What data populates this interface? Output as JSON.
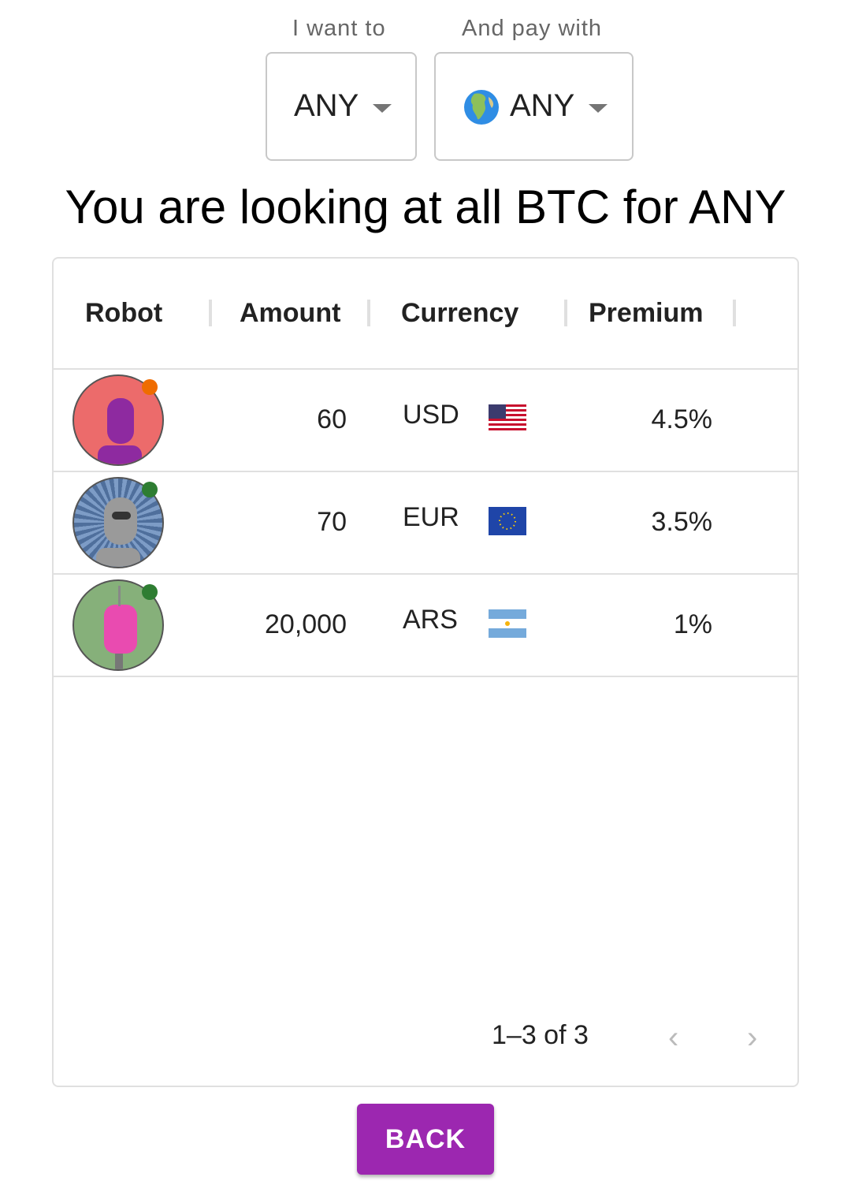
{
  "filters": {
    "want": {
      "label": "I want to",
      "value": "ANY"
    },
    "pay": {
      "label": "And pay with",
      "value": "ANY",
      "icon": "globe-icon"
    }
  },
  "title": "You are looking at all BTC for ANY",
  "table": {
    "columns": [
      "Robot",
      "Amount",
      "Currency",
      "Premium"
    ],
    "rows": [
      {
        "amount": "60",
        "currency": "USD",
        "flag": "us-flag-icon",
        "premium": "4.5%",
        "status_color": "#ef6c00",
        "avatar_bg": "#ec6b6b"
      },
      {
        "amount": "70",
        "currency": "EUR",
        "flag": "eu-flag-icon",
        "premium": "3.5%",
        "status_color": "#2e7d32",
        "avatar_bg": "#5a7ba8"
      },
      {
        "amount": "20,000",
        "currency": "ARS",
        "flag": "ar-flag-icon",
        "premium": "1%",
        "status_color": "#2e7d32",
        "avatar_bg": "#86b07a"
      }
    ],
    "pagination": "1–3 of 3"
  },
  "back_label": "BACK"
}
